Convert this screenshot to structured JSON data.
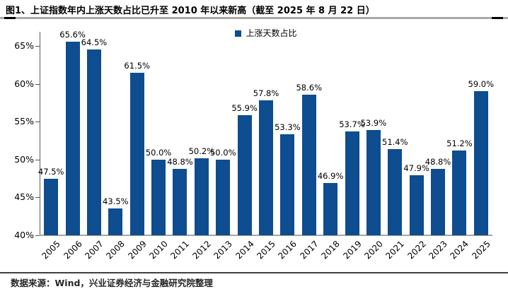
{
  "title": "图1、上证指数年内上涨天数占比已升至 2010 年以来新高（截至 2025 年 8 月 22 日）",
  "footer": "数据来源：Wind，兴业证券经济与金融研究院整理",
  "colors": {
    "bar": "#0E4D8F",
    "axis_line": "#595959",
    "baseline": "#A6A6A6",
    "title_text": "#000000"
  },
  "chart_data": {
    "type": "bar",
    "title": "上证指数年内上涨天数占比",
    "legend": [
      "上涨天数占比"
    ],
    "legend_position": "top-center",
    "categories": [
      "2005",
      "2006",
      "2007",
      "2008",
      "2009",
      "2010",
      "2011",
      "2012",
      "2013",
      "2014",
      "2015",
      "2016",
      "2017",
      "2018",
      "2019",
      "2020",
      "2021",
      "2022",
      "2023",
      "2024",
      "2025"
    ],
    "values": [
      47.5,
      65.6,
      64.5,
      43.5,
      61.5,
      50.0,
      48.8,
      50.2,
      50.0,
      55.9,
      57.8,
      53.3,
      58.6,
      46.9,
      53.7,
      53.9,
      51.4,
      47.9,
      48.8,
      51.2,
      59.0
    ],
    "labels": [
      "47.5%",
      "65.6%",
      "64.5%",
      "43.5%",
      "61.5%",
      "50.0%",
      "48.8%",
      "50.2%",
      "50.0%",
      "55.9%",
      "57.8%",
      "53.3%",
      "58.6%",
      "46.9%",
      "53.7%",
      "53.9%",
      "51.4%",
      "47.9%",
      "48.8%",
      "51.2%",
      "59.0%"
    ],
    "xlabel": "",
    "ylabel": "",
    "ylim": [
      40,
      65
    ],
    "yticks": [
      "40%",
      "45%",
      "50%",
      "55%",
      "60%",
      "65%"
    ],
    "grid": false,
    "bar_color": "#0E4D8F"
  }
}
